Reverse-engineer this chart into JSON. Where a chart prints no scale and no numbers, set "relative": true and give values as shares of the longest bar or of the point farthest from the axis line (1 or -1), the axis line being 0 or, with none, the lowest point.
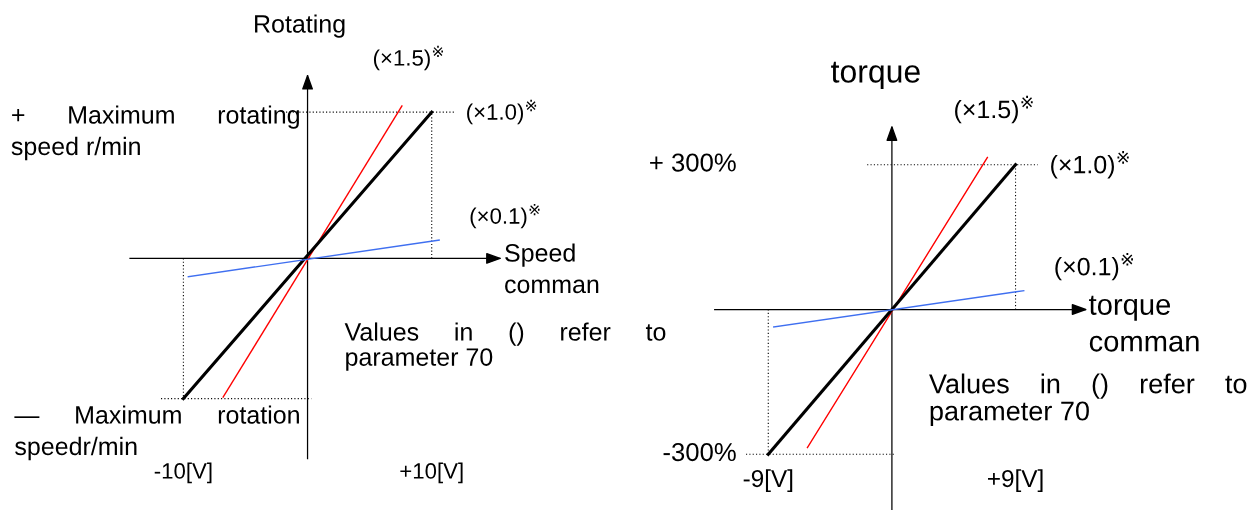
{
  "chart_data": [
    {
      "type": "line",
      "relative": true,
      "xlabel": "Speed\ncomman",
      "ylabel": "Rotating",
      "xlim": [
        -14.3,
        15.5
      ],
      "xticks": [
        {
          "value": -10,
          "label": "-10[V]"
        },
        {
          "value": 10,
          "label": "+10[V]"
        }
      ],
      "series": [
        {
          "name": "(×1.5)$^{※}$",
          "color": "#ff0000",
          "x": [
            -6.8,
            7.6
          ],
          "values": [
            -0.91,
            1
          ]
        },
        {
          "name": "(×1.0)$^{※}$",
          "color": "#000000",
          "x": [
            -10,
            10
          ],
          "values": [
            -0.92,
            0.96
          ]
        },
        {
          "name": "(×0.1)$^{※}$",
          "color": "#3f6ff0",
          "x": [
            -9.6,
            10.6
          ],
          "values": [
            -0.12,
            0.12
          ]
        }
      ],
      "ref_lines": [
        {
          "axis": "y",
          "value": 0.96,
          "color": "#000000",
          "line_style": "dotted"
        },
        {
          "axis": "y",
          "value": -0.92,
          "color": "#000000",
          "line_style": "dotted"
        },
        {
          "axis": "x",
          "value": 10,
          "color": "#000000",
          "line_style": "dotted"
        },
        {
          "axis": "x",
          "value": -10,
          "color": "#000000",
          "line_style": "dotted"
        }
      ],
      "annotations": [
        "+ Maximum rotating\nspeed r/min",
        "— Maximum rotation\nspeedr/min",
        "Values in () refer to\nparameter 70"
      ]
    },
    {
      "type": "line",
      "xlabel": "torque\ncomman",
      "ylabel": "torque",
      "xlim": [
        -12.9,
        14.1
      ],
      "ylim": [
        -414,
        378
      ],
      "xticks": [
        {
          "value": -9,
          "label": "-9[V]"
        },
        {
          "value": 9,
          "label": "+9[V]"
        }
      ],
      "yticks": [
        {
          "value": 300,
          "label": "+ 300%"
        },
        {
          "value": -300,
          "label": "-300%"
        }
      ],
      "series": [
        {
          "name": "(×1.5)$^{※}$",
          "color": "#ff0000",
          "x": [
            -6.15,
            6.95
          ],
          "values": [
            -286,
            315
          ]
        },
        {
          "name": "(×1.0)$^{※}$",
          "color": "#000000",
          "x": [
            -9,
            9
          ],
          "values": [
            -300,
            300
          ]
        },
        {
          "name": "(×0.1)$^{※}$",
          "color": "#3f6ff0",
          "x": [
            -8.6,
            9.6
          ],
          "values": [
            -36,
            39
          ]
        }
      ],
      "ref_lines": [
        {
          "axis": "y",
          "value": 300,
          "color": "#000000",
          "line_style": "dotted"
        },
        {
          "axis": "y",
          "value": -300,
          "color": "#000000",
          "line_style": "dotted"
        },
        {
          "axis": "x",
          "value": 9,
          "color": "#000000",
          "line_style": "dotted"
        },
        {
          "axis": "x",
          "value": -9,
          "color": "#000000",
          "line_style": "dotted"
        }
      ],
      "annotations": [
        "Values in () refer to\nparameter 70"
      ]
    }
  ]
}
